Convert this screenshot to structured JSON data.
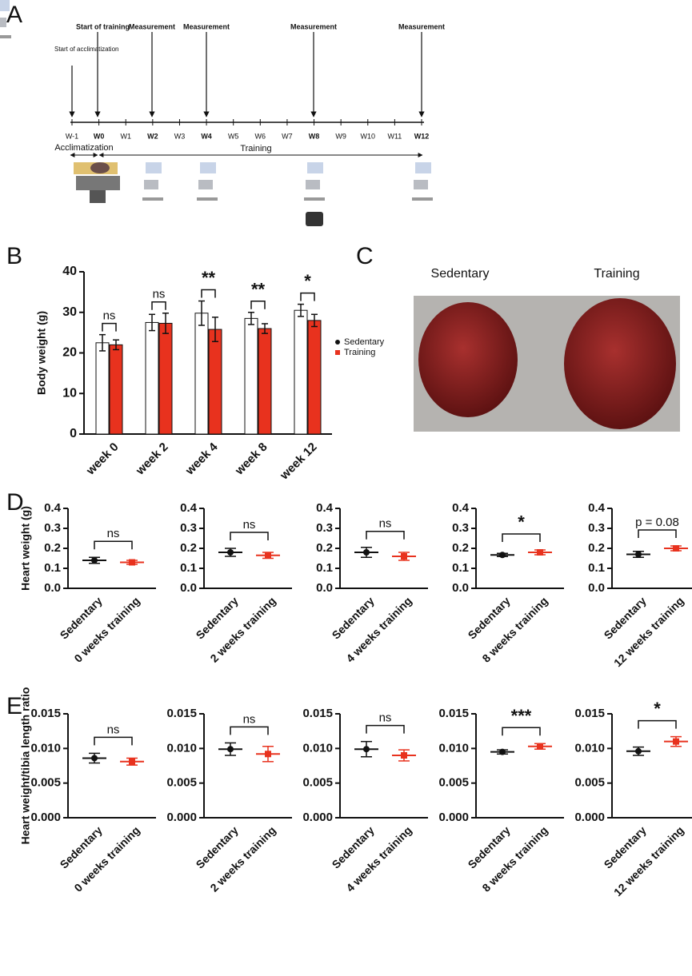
{
  "panel_labels": [
    "A",
    "B",
    "C",
    "D",
    "E"
  ],
  "timeline": {
    "weeks": [
      {
        "label": "W-1",
        "bold": false
      },
      {
        "label": "W0",
        "bold": true
      },
      {
        "label": "W1",
        "bold": false
      },
      {
        "label": "W2",
        "bold": true
      },
      {
        "label": "W3",
        "bold": false
      },
      {
        "label": "W4",
        "bold": true
      },
      {
        "label": "W5",
        "bold": false
      },
      {
        "label": "W6",
        "bold": false
      },
      {
        "label": "W7",
        "bold": false
      },
      {
        "label": "W8",
        "bold": true
      },
      {
        "label": "W9",
        "bold": false
      },
      {
        "label": "W10",
        "bold": false
      },
      {
        "label": "W11",
        "bold": false
      },
      {
        "label": "W12",
        "bold": true
      }
    ],
    "events": [
      "Start of acclimatization",
      "Start of training",
      "Measurement",
      "Measurement",
      "Measurement",
      "Measurement"
    ],
    "phases": [
      "Acclimatization",
      "Training"
    ]
  },
  "photo": {
    "labels": [
      "Sedentary",
      "Training"
    ]
  },
  "chart_data": [
    {
      "type": "bar",
      "ylabel": "Body weight (g)",
      "categories": [
        "week 0",
        "week 2",
        "week 4",
        "week 8",
        "week 12"
      ],
      "series": [
        {
          "name": "Sedentary",
          "color": "#ffffff",
          "values": [
            22.5,
            27.5,
            29.8,
            28.5,
            30.5
          ],
          "errors": [
            2,
            2,
            3,
            1.5,
            1.5
          ]
        },
        {
          "name": "Training",
          "color": "#e8321e",
          "values": [
            22,
            27.3,
            25.8,
            26,
            28
          ],
          "errors": [
            1.2,
            2.5,
            3,
            1.2,
            1.5
          ]
        }
      ],
      "annotations": [
        "ns",
        "ns",
        "**",
        "**",
        "*"
      ],
      "ylim": [
        0,
        40
      ],
      "yticks": [
        0,
        10,
        20,
        30,
        40
      ]
    },
    {
      "type": "dot",
      "ylabel": "Heart weight (g)",
      "categories": [
        "Sedentary",
        "0 weeks training"
      ],
      "colors": [
        "#111111",
        "#e8321e"
      ],
      "values": [
        0.14,
        0.13
      ],
      "errors": [
        0.015,
        0.01
      ],
      "annotation": "ns",
      "ylim": [
        0,
        0.4
      ],
      "yticks": [
        {
          "value": 0,
          "label": "0.0"
        },
        0.1,
        0.2,
        0.3,
        0.4
      ]
    },
    {
      "type": "dot",
      "categories": [
        "Sedentary",
        "2 weeks training"
      ],
      "colors": [
        "#111111",
        "#e8321e"
      ],
      "values": [
        0.18,
        0.165
      ],
      "errors": [
        0.02,
        0.015
      ],
      "annotation": "ns",
      "ylim": [
        0,
        0.4
      ],
      "yticks": [
        {
          "value": 0,
          "label": "0.0"
        },
        0.1,
        0.2,
        0.3,
        0.4
      ]
    },
    {
      "type": "dot",
      "categories": [
        "Sedentary",
        "4 weeks training"
      ],
      "colors": [
        "#111111",
        "#e8321e"
      ],
      "values": [
        0.18,
        0.16
      ],
      "errors": [
        0.025,
        0.02
      ],
      "annotation": "ns",
      "ylim": [
        0,
        0.4
      ],
      "yticks": [
        {
          "value": 0,
          "label": "0.0"
        },
        0.1,
        0.2,
        0.3,
        0.4
      ]
    },
    {
      "type": "dot",
      "categories": [
        "Sedentary",
        "8 weeks training"
      ],
      "colors": [
        "#111111",
        "#e8321e"
      ],
      "values": [
        0.167,
        0.18
      ],
      "errors": [
        0.008,
        0.012
      ],
      "annotation": "*",
      "ylim": [
        0,
        0.4
      ],
      "yticks": [
        {
          "value": 0,
          "label": "0.0"
        },
        0.1,
        0.2,
        0.3,
        0.4
      ]
    },
    {
      "type": "dot",
      "categories": [
        "Sedentary",
        "12 weeks training"
      ],
      "colors": [
        "#111111",
        "#e8321e"
      ],
      "values": [
        0.17,
        0.2
      ],
      "errors": [
        0.015,
        0.012
      ],
      "annotation": "p = 0.08",
      "ylim": [
        0,
        0.4
      ],
      "yticks": [
        {
          "value": 0,
          "label": "0.0"
        },
        0.1,
        0.2,
        0.3,
        0.4
      ]
    },
    {
      "type": "dot",
      "ylabel": "Heart weight/tibia length ratio",
      "categories": [
        "Sedentary",
        "0 weeks training"
      ],
      "colors": [
        "#111111",
        "#e8321e"
      ],
      "values": [
        0.0086,
        0.0081
      ],
      "errors": [
        0.0007,
        0.0005
      ],
      "annotation": "ns",
      "ylim": [
        0,
        0.015
      ],
      "yticks": [
        {
          "value": 0,
          "label": "0.000"
        },
        0.005,
        {
          "value": 0.01,
          "label": "0.010"
        },
        0.015
      ]
    },
    {
      "type": "dot",
      "categories": [
        "Sedentary",
        "2 weeks training"
      ],
      "colors": [
        "#111111",
        "#e8321e"
      ],
      "values": [
        0.0099,
        0.0092
      ],
      "errors": [
        0.0009,
        0.0011
      ],
      "annotation": "ns",
      "ylim": [
        0,
        0.015
      ],
      "yticks": [
        {
          "value": 0,
          "label": "0.000"
        },
        0.005,
        {
          "value": 0.01,
          "label": "0.010"
        },
        0.015
      ]
    },
    {
      "type": "dot",
      "categories": [
        "Sedentary",
        "4 weeks training"
      ],
      "colors": [
        "#111111",
        "#e8321e"
      ],
      "values": [
        0.0099,
        0.009
      ],
      "errors": [
        0.0011,
        0.0008
      ],
      "annotation": "ns",
      "ylim": [
        0,
        0.015
      ],
      "yticks": [
        {
          "value": 0,
          "label": "0.000"
        },
        0.005,
        {
          "value": 0.01,
          "label": "0.010"
        },
        0.015
      ]
    },
    {
      "type": "dot",
      "categories": [
        "Sedentary",
        "8 weeks training"
      ],
      "colors": [
        "#111111",
        "#e8321e"
      ],
      "values": [
        0.0095,
        0.0103
      ],
      "errors": [
        0.0003,
        0.0004
      ],
      "annotation": "***",
      "ylim": [
        0,
        0.015
      ],
      "yticks": [
        {
          "value": 0,
          "label": "0.000"
        },
        0.005,
        {
          "value": 0.01,
          "label": "0.010"
        },
        0.015
      ]
    },
    {
      "type": "dot",
      "categories": [
        "Sedentary",
        "12 weeks training"
      ],
      "colors": [
        "#111111",
        "#e8321e"
      ],
      "values": [
        0.0096,
        0.011
      ],
      "errors": [
        0.0006,
        0.0007
      ],
      "annotation": "*",
      "ylim": [
        0,
        0.015
      ],
      "yticks": [
        {
          "value": 0,
          "label": "0.000"
        },
        0.005,
        {
          "value": 0.01,
          "label": "0.010"
        },
        0.015
      ]
    }
  ]
}
